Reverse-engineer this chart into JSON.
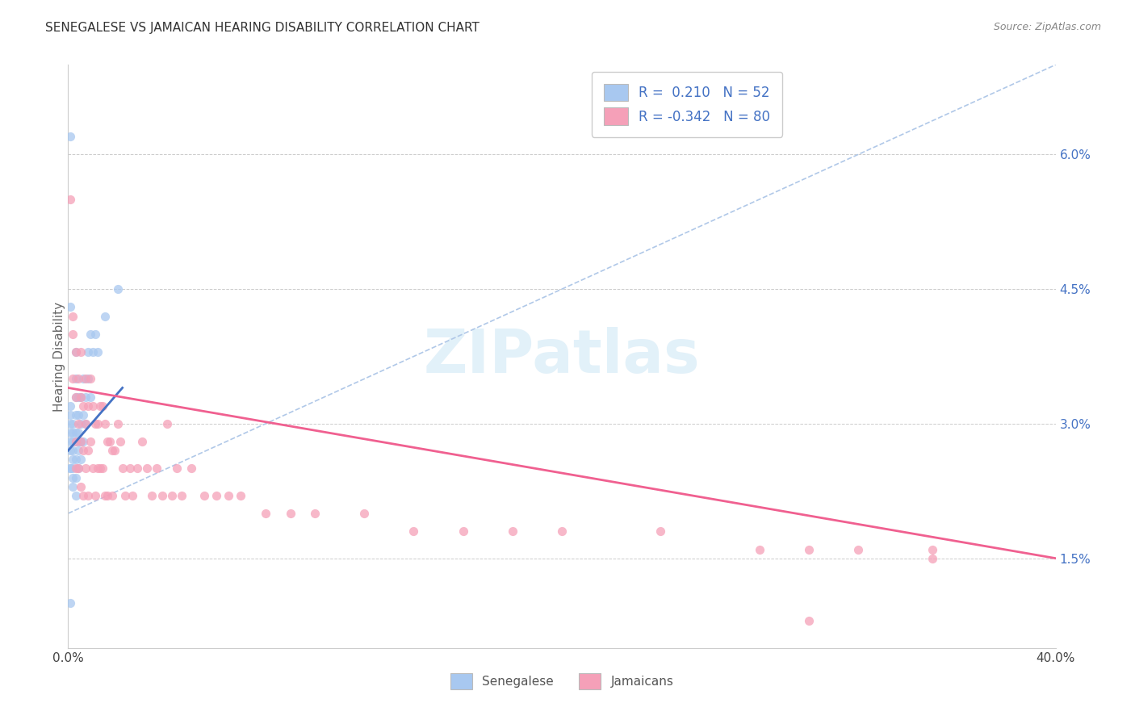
{
  "title": "SENEGALESE VS JAMAICAN HEARING DISABILITY CORRELATION CHART",
  "source": "Source: ZipAtlas.com",
  "ylabel": "Hearing Disability",
  "right_yticks": [
    "1.5%",
    "3.0%",
    "4.5%",
    "6.0%"
  ],
  "right_ytick_vals": [
    0.015,
    0.03,
    0.045,
    0.06
  ],
  "legend_senegalese": "R =  0.210   N = 52",
  "legend_jamaicans": "R = -0.342   N = 80",
  "senegalese_color": "#a8c8f0",
  "jamaican_color": "#f5a0b8",
  "senegalese_line_color": "#4472c4",
  "jamaican_line_color": "#f06090",
  "dashed_line_color": "#b0c8e8",
  "watermark_color": "#d0e8f5",
  "xmin": 0.0,
  "xmax": 0.4,
  "ymin": 0.005,
  "ymax": 0.07,
  "sen_x": [
    0.001,
    0.001,
    0.001,
    0.001,
    0.001,
    0.001,
    0.001,
    0.001,
    0.001,
    0.001,
    0.002,
    0.002,
    0.002,
    0.002,
    0.002,
    0.002,
    0.002,
    0.002,
    0.003,
    0.003,
    0.003,
    0.003,
    0.003,
    0.003,
    0.003,
    0.003,
    0.004,
    0.004,
    0.004,
    0.004,
    0.004,
    0.004,
    0.005,
    0.005,
    0.005,
    0.005,
    0.006,
    0.006,
    0.006,
    0.007,
    0.007,
    0.008,
    0.008,
    0.009,
    0.009,
    0.01,
    0.011,
    0.012,
    0.015,
    0.02,
    0.001,
    0.003
  ],
  "sen_y": [
    0.025,
    0.028,
    0.03,
    0.032,
    0.025,
    0.027,
    0.029,
    0.031,
    0.043,
    0.01,
    0.025,
    0.026,
    0.028,
    0.03,
    0.027,
    0.029,
    0.023,
    0.024,
    0.026,
    0.028,
    0.029,
    0.031,
    0.033,
    0.022,
    0.024,
    0.035,
    0.027,
    0.029,
    0.031,
    0.025,
    0.033,
    0.028,
    0.028,
    0.03,
    0.033,
    0.026,
    0.031,
    0.035,
    0.028,
    0.033,
    0.03,
    0.035,
    0.038,
    0.033,
    0.04,
    0.038,
    0.04,
    0.038,
    0.042,
    0.045,
    0.062,
    0.038
  ],
  "jam_x": [
    0.001,
    0.002,
    0.002,
    0.002,
    0.003,
    0.003,
    0.003,
    0.003,
    0.004,
    0.004,
    0.004,
    0.005,
    0.005,
    0.005,
    0.005,
    0.006,
    0.006,
    0.006,
    0.007,
    0.007,
    0.007,
    0.008,
    0.008,
    0.008,
    0.009,
    0.009,
    0.01,
    0.01,
    0.011,
    0.011,
    0.012,
    0.012,
    0.013,
    0.013,
    0.014,
    0.014,
    0.015,
    0.015,
    0.016,
    0.016,
    0.017,
    0.018,
    0.018,
    0.019,
    0.02,
    0.021,
    0.022,
    0.023,
    0.025,
    0.026,
    0.028,
    0.03,
    0.032,
    0.034,
    0.036,
    0.038,
    0.04,
    0.042,
    0.044,
    0.046,
    0.05,
    0.055,
    0.06,
    0.065,
    0.07,
    0.08,
    0.09,
    0.1,
    0.12,
    0.14,
    0.16,
    0.18,
    0.2,
    0.24,
    0.28,
    0.3,
    0.32,
    0.35,
    0.35,
    0.3
  ],
  "jam_y": [
    0.055,
    0.04,
    0.035,
    0.042,
    0.038,
    0.033,
    0.028,
    0.025,
    0.035,
    0.03,
    0.025,
    0.038,
    0.033,
    0.028,
    0.023,
    0.032,
    0.027,
    0.022,
    0.035,
    0.03,
    0.025,
    0.032,
    0.027,
    0.022,
    0.035,
    0.028,
    0.032,
    0.025,
    0.03,
    0.022,
    0.03,
    0.025,
    0.032,
    0.025,
    0.032,
    0.025,
    0.03,
    0.022,
    0.028,
    0.022,
    0.028,
    0.027,
    0.022,
    0.027,
    0.03,
    0.028,
    0.025,
    0.022,
    0.025,
    0.022,
    0.025,
    0.028,
    0.025,
    0.022,
    0.025,
    0.022,
    0.03,
    0.022,
    0.025,
    0.022,
    0.025,
    0.022,
    0.022,
    0.022,
    0.022,
    0.02,
    0.02,
    0.02,
    0.02,
    0.018,
    0.018,
    0.018,
    0.018,
    0.018,
    0.016,
    0.016,
    0.016,
    0.016,
    0.015,
    0.008
  ],
  "sen_line_x": [
    0.0,
    0.022
  ],
  "sen_line_y": [
    0.027,
    0.034
  ],
  "jam_line_x": [
    0.0,
    0.4
  ],
  "jam_line_y": [
    0.034,
    0.015
  ],
  "dash_line_x": [
    0.0,
    0.4
  ],
  "dash_line_y": [
    0.02,
    0.07
  ]
}
